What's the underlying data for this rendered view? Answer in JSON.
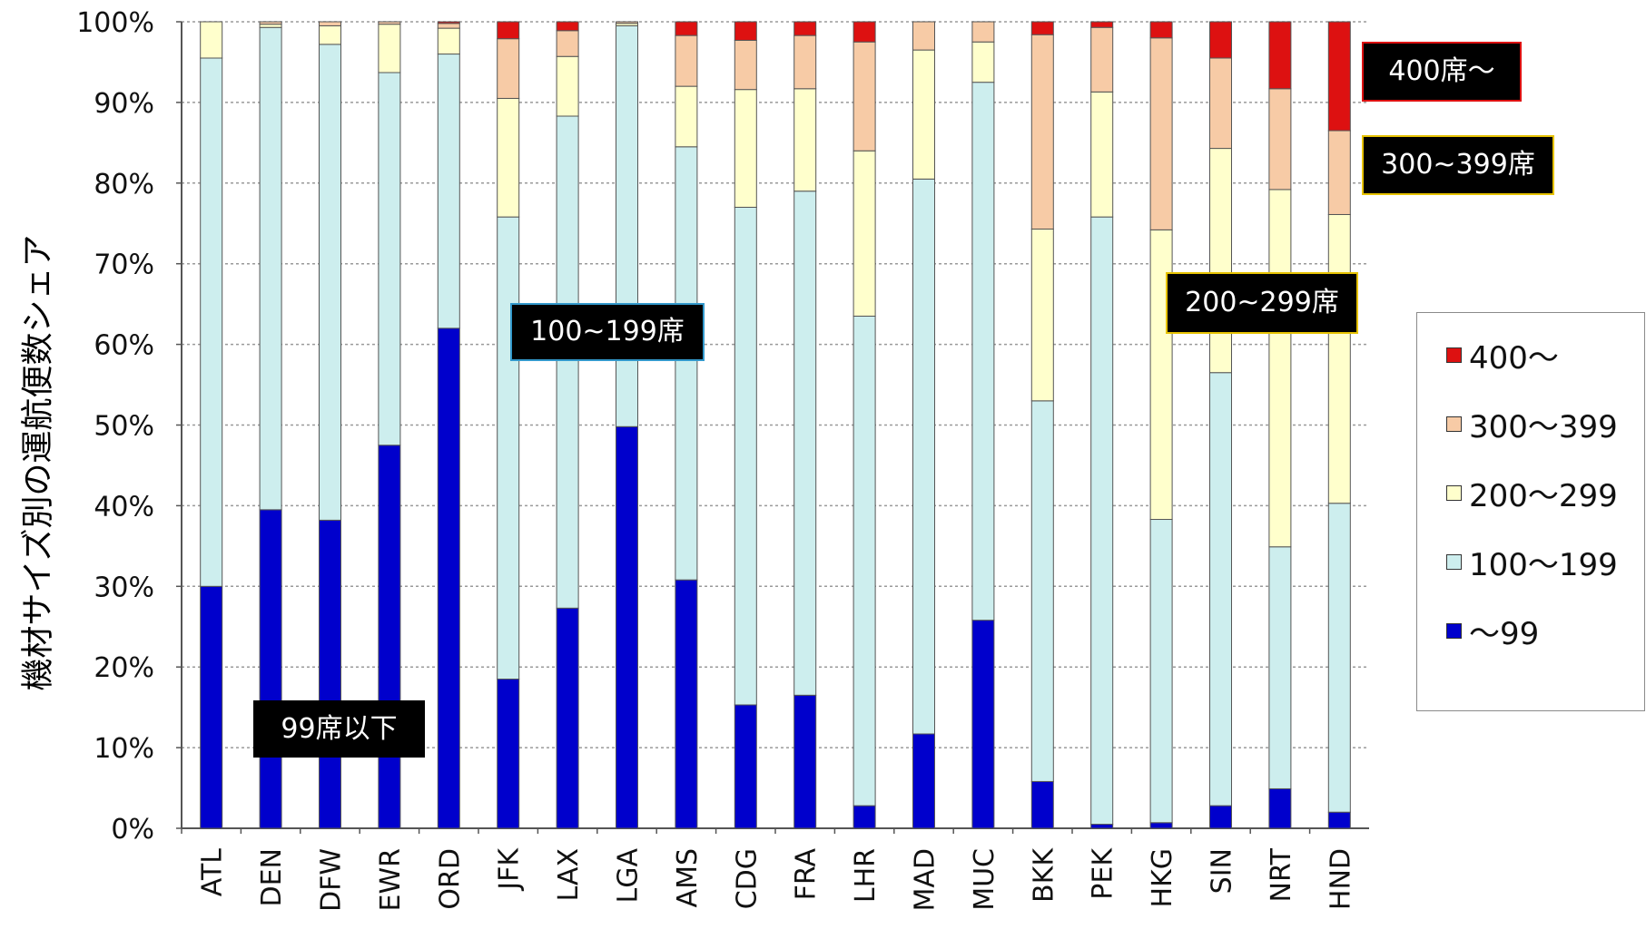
{
  "chart_data": {
    "type": "bar",
    "stacked": true,
    "title": "",
    "ylabel": "機材サイズ別の運航便数シェア",
    "xlabel": "",
    "ylim": [
      0,
      100
    ],
    "y_ticks": [
      "0%",
      "10%",
      "20%",
      "30%",
      "40%",
      "50%",
      "60%",
      "70%",
      "80%",
      "90%",
      "100%"
    ],
    "grid": "horizontal, dotted",
    "legend_position": "right",
    "categories": [
      "ATL",
      "DEN",
      "DFW",
      "EWR",
      "ORD",
      "JFK",
      "LAX",
      "LGA",
      "AMS",
      "CDG",
      "FRA",
      "LHR",
      "MAD",
      "MUC",
      "BKK",
      "PEK",
      "HKG",
      "SIN",
      "NRT",
      "HND"
    ],
    "series": [
      {
        "name": "～99",
        "color": "#0000cc",
        "values": [
          30,
          39.5,
          38.2,
          47.5,
          62,
          18.5,
          27.3,
          49.8,
          30.8,
          15.3,
          16.5,
          2.8,
          11.7,
          25.8,
          5.8,
          0.5,
          0.7,
          2.8,
          4.9,
          2
        ]
      },
      {
        "name": "100～199",
        "color": "#cdeeee",
        "values": [
          65.5,
          59.8,
          59,
          46.2,
          34,
          57.3,
          61,
          49.7,
          53.7,
          61.7,
          62.5,
          60.7,
          68.8,
          66.7,
          47.2,
          75.3,
          37.6,
          53.7,
          30,
          38.3
        ]
      },
      {
        "name": "200～299",
        "color": "#ffffcc",
        "values": [
          4.5,
          0.4,
          2.3,
          6,
          3.2,
          14.7,
          7.4,
          0.3,
          7.5,
          14.6,
          12.7,
          20.5,
          16,
          5,
          21.3,
          15.5,
          35.9,
          27.8,
          44.3,
          35.8
        ]
      },
      {
        "name": "300～399",
        "color": "#f7cba6",
        "values": [
          0,
          0.3,
          0.5,
          0.3,
          0.6,
          7.4,
          3.2,
          0.2,
          6.3,
          6.1,
          6.6,
          13.5,
          3.5,
          2.5,
          24.1,
          8,
          23.8,
          11.2,
          12.5,
          10.4
        ]
      },
      {
        "name": "400～",
        "color": "#dd1111",
        "values": [
          0,
          0,
          0,
          0,
          0.2,
          2.1,
          1.1,
          0,
          1.7,
          2.3,
          1.7,
          2.5,
          0,
          0,
          1.6,
          0.7,
          2,
          4.5,
          8.3,
          13.5
        ]
      }
    ],
    "annotations": [
      {
        "text": "99席以下",
        "border": "#000000"
      },
      {
        "text": "100~199席",
        "border": "#3399cc"
      },
      {
        "text": "200~299席",
        "border": "#e6c200"
      },
      {
        "text": "300~399席",
        "border": "#e6c200"
      },
      {
        "text": "400席～",
        "border": "#dd1111"
      }
    ]
  }
}
